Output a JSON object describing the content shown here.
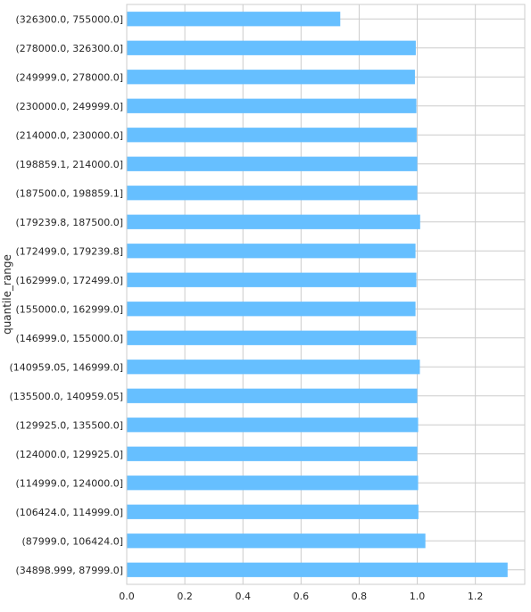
{
  "chart_data": {
    "type": "bar",
    "orientation": "horizontal",
    "ylabel": "quantile_range",
    "xlabel": "",
    "categories": [
      "(326300.0, 755000.0]",
      "(278000.0, 326300.0]",
      "(249999.0, 278000.0]",
      "(230000.0, 249999.0]",
      "(214000.0, 230000.0]",
      "(198859.1, 214000.0]",
      "(187500.0, 198859.1]",
      "(179239.8, 187500.0]",
      "(172499.0, 179239.8]",
      "(162999.0, 172499.0]",
      "(155000.0, 162999.0]",
      "(146999.0, 155000.0]",
      "(140959.05, 146999.0]",
      "(135500.0, 140959.05]",
      "(129925.0, 135500.0]",
      "(124000.0, 129925.0]",
      "(114999.0, 124000.0]",
      "(106424.0, 114999.0]",
      "(87999.0, 106424.0]",
      "(34898.999, 87999.0]"
    ],
    "values": [
      0.735,
      0.995,
      0.992,
      0.997,
      0.998,
      1.0,
      1.0,
      1.01,
      0.994,
      0.997,
      0.994,
      0.997,
      1.009,
      1.0,
      1.003,
      1.0,
      1.003,
      1.004,
      1.028,
      1.311
    ],
    "xlim": [
      0,
      1.37
    ],
    "xticks": [
      "0.0",
      "0.2",
      "0.4",
      "0.6",
      "0.8",
      "1.0",
      "1.2"
    ],
    "grid": true,
    "bar_color": "#66bfff",
    "grid_color": "#cccccc"
  }
}
